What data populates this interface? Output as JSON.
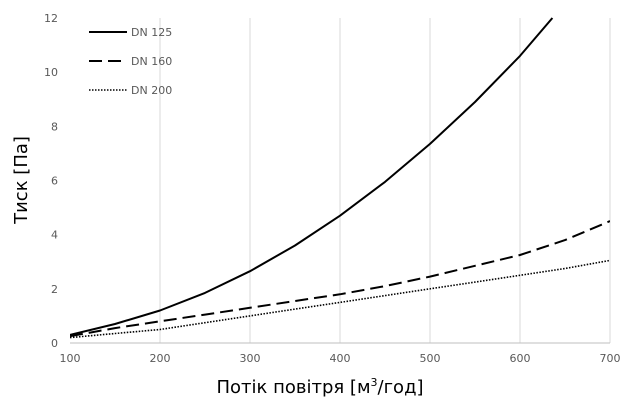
{
  "chart_data": {
    "type": "line",
    "xlabel": "Потік повітря [м",
    "xlabel_sup": "3",
    "xlabel_tail": "/год]",
    "ylabel": "Тиск [Па]",
    "xlim": [
      100,
      700
    ],
    "ylim": [
      0,
      12
    ],
    "x_ticks": [
      "100",
      "200",
      "300",
      "400",
      "500",
      "600",
      "700"
    ],
    "y_ticks": [
      "0",
      "2",
      "4",
      "6",
      "8",
      "10",
      "12"
    ],
    "grid": "vertical",
    "legend_position": "top-left",
    "series": [
      {
        "name": "DN 125",
        "style": "solid",
        "x": [
          100,
          150,
          200,
          250,
          300,
          350,
          400,
          450,
          500,
          550,
          600,
          636
        ],
        "y": [
          0.3,
          0.7,
          1.2,
          1.85,
          2.65,
          3.6,
          4.7,
          5.95,
          7.35,
          8.9,
          10.6,
          12.0
        ]
      },
      {
        "name": "DN 160",
        "style": "dashed",
        "x": [
          100,
          150,
          200,
          250,
          300,
          350,
          400,
          450,
          500,
          550,
          600,
          650,
          700
        ],
        "y": [
          0.25,
          0.55,
          0.8,
          1.05,
          1.3,
          1.55,
          1.8,
          2.1,
          2.45,
          2.85,
          3.25,
          3.8,
          4.5
        ]
      },
      {
        "name": "DN 200",
        "style": "dotted",
        "x": [
          100,
          150,
          200,
          250,
          300,
          350,
          400,
          450,
          500,
          550,
          600,
          650,
          700
        ],
        "y": [
          0.2,
          0.35,
          0.5,
          0.75,
          1.0,
          1.25,
          1.5,
          1.75,
          2.0,
          2.25,
          2.5,
          2.75,
          3.05
        ]
      }
    ],
    "colors": {
      "line": "#000000",
      "grid": "#d9d9d9",
      "axis": "#bfbfbf",
      "tick_text": "#595959"
    }
  }
}
